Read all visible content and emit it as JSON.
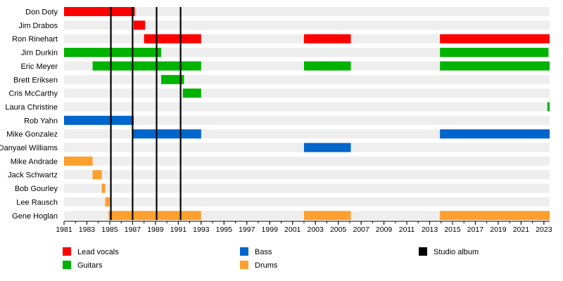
{
  "chart_data": {
    "type": "timeline",
    "x_range": [
      1981,
      2023.5
    ],
    "x_ticks": [
      1981,
      1983,
      1985,
      1987,
      1989,
      1991,
      1993,
      1995,
      1997,
      1999,
      2001,
      2003,
      2005,
      2007,
      2009,
      2011,
      2013,
      2015,
      2017,
      2019,
      2021,
      2023
    ],
    "roles": [
      {
        "key": "lead_vocals",
        "label": "Lead vocals",
        "color": "#ff0000"
      },
      {
        "key": "guitars",
        "label": "Guitars",
        "color": "#00b300"
      },
      {
        "key": "bass",
        "label": "Bass",
        "color": "#0066cc"
      },
      {
        "key": "drums",
        "label": "Drums",
        "color": "#ff9f2e"
      },
      {
        "key": "studio_album",
        "label": "Studio album",
        "color": "#000000"
      }
    ],
    "members": [
      {
        "name": "Don Doty",
        "periods": [
          {
            "role": "lead_vocals",
            "start": 1981,
            "end": 1987.2
          }
        ]
      },
      {
        "name": "Jim Drabos",
        "periods": [
          {
            "role": "lead_vocals",
            "start": 1987.1,
            "end": 1988.1
          }
        ]
      },
      {
        "name": "Ron Rinehart",
        "periods": [
          {
            "role": "lead_vocals",
            "start": 1988.0,
            "end": 1993.0
          },
          {
            "role": "lead_vocals",
            "start": 2002.0,
            "end": 2006.1
          },
          {
            "role": "lead_vocals",
            "start": 2013.9,
            "end": 2023.7
          }
        ]
      },
      {
        "name": "Jim Durkin",
        "periods": [
          {
            "role": "guitars",
            "start": 1981,
            "end": 1989.5
          },
          {
            "role": "guitars",
            "start": 2013.9,
            "end": 2023.4
          }
        ]
      },
      {
        "name": "Eric Meyer",
        "periods": [
          {
            "role": "guitars",
            "start": 1983.5,
            "end": 1993.0
          },
          {
            "role": "guitars",
            "start": 2002.0,
            "end": 2006.1
          },
          {
            "role": "guitars",
            "start": 2013.9,
            "end": 2023.7
          }
        ]
      },
      {
        "name": "Brett Eriksen",
        "periods": [
          {
            "role": "guitars",
            "start": 1989.5,
            "end": 1991.5
          }
        ]
      },
      {
        "name": "Cris McCarthy",
        "periods": [
          {
            "role": "guitars",
            "start": 1991.4,
            "end": 1993.0
          }
        ]
      },
      {
        "name": "Laura Christine",
        "periods": [
          {
            "role": "guitars",
            "start": 2023.3,
            "end": 2023.7
          }
        ]
      },
      {
        "name": "Rob Yahn",
        "periods": [
          {
            "role": "bass",
            "start": 1981,
            "end": 1987.1
          }
        ]
      },
      {
        "name": "Mike Gonzalez",
        "periods": [
          {
            "role": "bass",
            "start": 1987.0,
            "end": 1993.0
          },
          {
            "role": "bass",
            "start": 2013.9,
            "end": 2023.7
          }
        ]
      },
      {
        "name": "Danyael Williams",
        "periods": [
          {
            "role": "bass",
            "start": 2002.0,
            "end": 2006.1
          }
        ]
      },
      {
        "name": "Mike Andrade",
        "periods": [
          {
            "role": "drums",
            "start": 1981,
            "end": 1983.5
          }
        ]
      },
      {
        "name": "Jack Schwartz",
        "periods": [
          {
            "role": "drums",
            "start": 1983.5,
            "end": 1984.3
          }
        ]
      },
      {
        "name": "Bob Gourley",
        "periods": [
          {
            "role": "drums",
            "start": 1984.3,
            "end": 1984.6
          }
        ]
      },
      {
        "name": "Lee Rausch",
        "periods": [
          {
            "role": "drums",
            "start": 1984.6,
            "end": 1985.0
          }
        ]
      },
      {
        "name": "Gene Hoglan",
        "periods": [
          {
            "role": "drums",
            "start": 1984.9,
            "end": 1993.0
          },
          {
            "role": "drums",
            "start": 2002.0,
            "end": 2006.1
          },
          {
            "role": "drums",
            "start": 2013.9,
            "end": 2023.7
          }
        ]
      }
    ],
    "studio_albums": [
      1985.1,
      1987.0,
      1989.1,
      1991.2
    ],
    "legend_position": "bottom"
  }
}
